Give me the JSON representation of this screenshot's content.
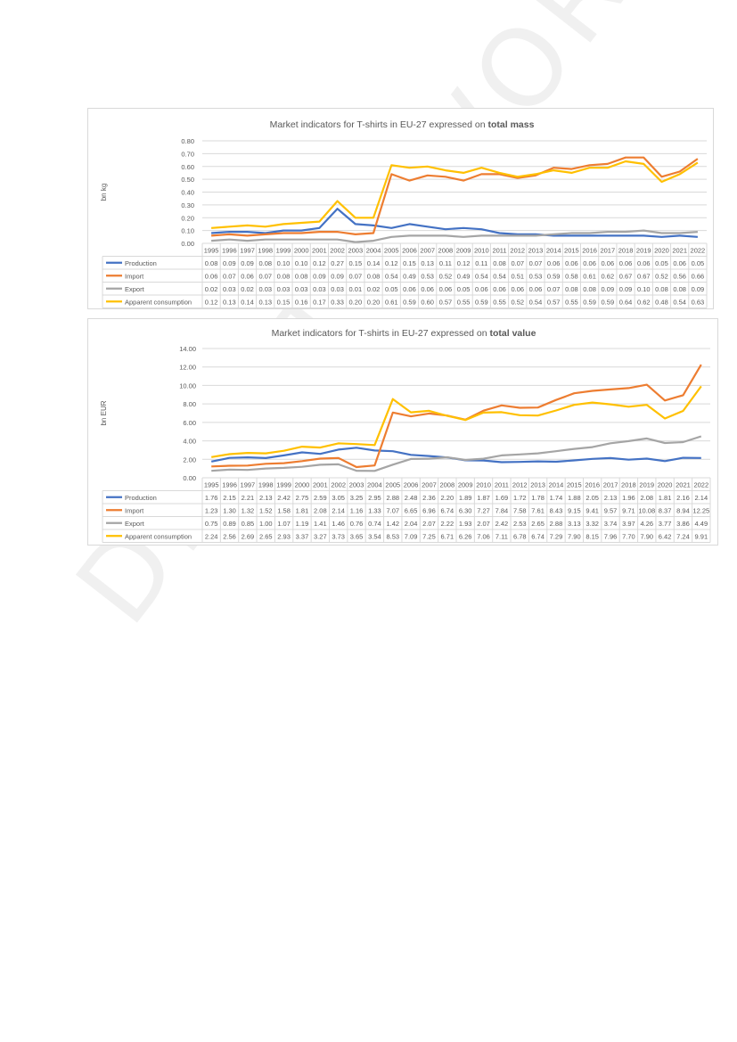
{
  "watermark": "DRAFT - WORK IN PROGRESS",
  "colors": {
    "production": "#4472c4",
    "import": "#ed7d31",
    "export": "#a5a5a5",
    "apparent_consumption": "#ffc000",
    "grid": "#d9d9d9",
    "text": "#595959"
  },
  "chart_data": [
    {
      "type": "line",
      "title_prefix": "Market indicators for T-shirts in EU-27 expressed on ",
      "title_bold": "total mass",
      "ylabel": "bn kg",
      "ylim": [
        0,
        0.8
      ],
      "yticks": [
        "0.00",
        "0.10",
        "0.20",
        "0.30",
        "0.40",
        "0.50",
        "0.60",
        "0.70",
        "0.80"
      ],
      "grid": true,
      "legend": "data-table",
      "categories": [
        "1995",
        "1996",
        "1997",
        "1998",
        "1999",
        "2000",
        "2001",
        "2002",
        "2003",
        "2004",
        "2005",
        "2006",
        "2007",
        "2008",
        "2009",
        "2010",
        "2011",
        "2012",
        "2013",
        "2014",
        "2015",
        "2016",
        "2017",
        "2018",
        "2019",
        "2020",
        "2021",
        "2022"
      ],
      "series": [
        {
          "name": "Production",
          "color": "#4472c4",
          "labels": [
            "0.08",
            "0.09",
            "0.09",
            "0.08",
            "0.10",
            "0.10",
            "0.12",
            "0.27",
            "0.15",
            "0.14",
            "0.12",
            "0.15",
            "0.13",
            "0.11",
            "0.12",
            "0.11",
            "0.08",
            "0.07",
            "0.07",
            "0.06",
            "0.06",
            "0.06",
            "0.06",
            "0.06",
            "0.06",
            "0.05",
            "0.06",
            "0.05"
          ],
          "values": [
            0.08,
            0.09,
            0.09,
            0.08,
            0.1,
            0.1,
            0.12,
            0.27,
            0.15,
            0.14,
            0.12,
            0.15,
            0.13,
            0.11,
            0.12,
            0.11,
            0.08,
            0.07,
            0.07,
            0.06,
            0.06,
            0.06,
            0.06,
            0.06,
            0.06,
            0.05,
            0.06,
            0.05
          ]
        },
        {
          "name": "Import",
          "color": "#ed7d31",
          "labels": [
            "0.06",
            "0.07",
            "0.06",
            "0.07",
            "0.08",
            "0.08",
            "0.09",
            "0.09",
            "0.07",
            "0.08",
            "0.54",
            "0.49",
            "0.53",
            "0.52",
            "0.49",
            "0.54",
            "0.54",
            "0.51",
            "0.53",
            "0.59",
            "0.58",
            "0.61",
            "0.62",
            "0.67",
            "0.67",
            "0.52",
            "0.56",
            "0.66"
          ],
          "values": [
            0.06,
            0.07,
            0.06,
            0.07,
            0.08,
            0.08,
            0.09,
            0.09,
            0.07,
            0.08,
            0.54,
            0.49,
            0.53,
            0.52,
            0.49,
            0.54,
            0.54,
            0.51,
            0.53,
            0.59,
            0.58,
            0.61,
            0.62,
            0.67,
            0.67,
            0.52,
            0.56,
            0.66
          ]
        },
        {
          "name": "Export",
          "color": "#a5a5a5",
          "labels": [
            "0.02",
            "0.03",
            "0.02",
            "0.03",
            "0.03",
            "0.03",
            "0.03",
            "0.03",
            "0.01",
            "0.02",
            "0.05",
            "0.06",
            "0.06",
            "0.06",
            "0.05",
            "0.06",
            "0.06",
            "0.06",
            "0.06",
            "0.07",
            "0.08",
            "0.08",
            "0.09",
            "0.09",
            "0.10",
            "0.08",
            "0.08",
            "0.09"
          ],
          "values": [
            0.02,
            0.03,
            0.02,
            0.03,
            0.03,
            0.03,
            0.03,
            0.03,
            0.01,
            0.02,
            0.05,
            0.06,
            0.06,
            0.06,
            0.05,
            0.06,
            0.06,
            0.06,
            0.06,
            0.07,
            0.08,
            0.08,
            0.09,
            0.09,
            0.1,
            0.08,
            0.08,
            0.09
          ]
        },
        {
          "name": "Apparent consumption",
          "color": "#ffc000",
          "labels": [
            "0.12",
            "0.13",
            "0.14",
            "0.13",
            "0.15",
            "0.16",
            "0.17",
            "0.33",
            "0.20",
            "0.20",
            "0.61",
            "0.59",
            "0.60",
            "0.57",
            "0.55",
            "0.59",
            "0.55",
            "0.52",
            "0.54",
            "0.57",
            "0.55",
            "0.59",
            "0.59",
            "0.64",
            "0.62",
            "0.48",
            "0.54",
            "0.63"
          ],
          "values": [
            0.12,
            0.13,
            0.14,
            0.13,
            0.15,
            0.16,
            0.17,
            0.33,
            0.2,
            0.2,
            0.61,
            0.59,
            0.6,
            0.57,
            0.55,
            0.59,
            0.55,
            0.52,
            0.54,
            0.57,
            0.55,
            0.59,
            0.59,
            0.64,
            0.62,
            0.48,
            0.54,
            0.63
          ]
        }
      ]
    },
    {
      "type": "line",
      "title_prefix": "Market indicators for T-shirts in EU-27 expressed on ",
      "title_bold": "total value",
      "ylabel": "bn EUR",
      "ylim": [
        0,
        14
      ],
      "yticks": [
        "0.00",
        "2.00",
        "4.00",
        "6.00",
        "8.00",
        "10.00",
        "12.00",
        "14.00"
      ],
      "grid": true,
      "legend": "data-table",
      "categories": [
        "1995",
        "1996",
        "1997",
        "1998",
        "1999",
        "2000",
        "2001",
        "2002",
        "2003",
        "2004",
        "2005",
        "2006",
        "2007",
        "2008",
        "2009",
        "2010",
        "2011",
        "2012",
        "2013",
        "2014",
        "2015",
        "2016",
        "2017",
        "2018",
        "2019",
        "2020",
        "2021",
        "2022"
      ],
      "series": [
        {
          "name": "Production",
          "color": "#4472c4",
          "labels": [
            "1.76",
            "2.15",
            "2.21",
            "2.13",
            "2.42",
            "2.75",
            "2.59",
            "3.05",
            "3.25",
            "2.95",
            "2.88",
            "2.48",
            "2.36",
            "2.20",
            "1.89",
            "1.87",
            "1.69",
            "1.72",
            "1.78",
            "1.74",
            "1.88",
            "2.05",
            "2.13",
            "1.96",
            "2.08",
            "1.81",
            "2.16",
            "2.14"
          ],
          "values": [
            1.76,
            2.15,
            2.21,
            2.13,
            2.42,
            2.75,
            2.59,
            3.05,
            3.25,
            2.95,
            2.88,
            2.48,
            2.36,
            2.2,
            1.89,
            1.87,
            1.69,
            1.72,
            1.78,
            1.74,
            1.88,
            2.05,
            2.13,
            1.96,
            2.08,
            1.81,
            2.16,
            2.14
          ]
        },
        {
          "name": "Import",
          "color": "#ed7d31",
          "labels": [
            "1.23",
            "1.30",
            "1.32",
            "1.52",
            "1.58",
            "1.81",
            "2.08",
            "2.14",
            "1.16",
            "1.33",
            "7.07",
            "6.65",
            "6.96",
            "6.74",
            "6.30",
            "7.27",
            "7.84",
            "7.58",
            "7.61",
            "8.43",
            "9.15",
            "9.41",
            "9.57",
            "9.71",
            "10.08",
            "8.37",
            "8.94",
            "12.25"
          ],
          "values": [
            1.23,
            1.3,
            1.32,
            1.52,
            1.58,
            1.81,
            2.08,
            2.14,
            1.16,
            1.33,
            7.07,
            6.65,
            6.96,
            6.74,
            6.3,
            7.27,
            7.84,
            7.58,
            7.61,
            8.43,
            9.15,
            9.41,
            9.57,
            9.71,
            10.08,
            8.37,
            8.94,
            12.25
          ]
        },
        {
          "name": "Export",
          "color": "#a5a5a5",
          "labels": [
            "0.75",
            "0.89",
            "0.85",
            "1.00",
            "1.07",
            "1.19",
            "1.41",
            "1.46",
            "0.76",
            "0.74",
            "1.42",
            "2.04",
            "2.07",
            "2.22",
            "1.93",
            "2.07",
            "2.42",
            "2.53",
            "2.65",
            "2.88",
            "3.13",
            "3.32",
            "3.74",
            "3.97",
            "4.26",
            "3.77",
            "3.86",
            "4.49"
          ],
          "values": [
            0.75,
            0.89,
            0.85,
            1.0,
            1.07,
            1.19,
            1.41,
            1.46,
            0.76,
            0.74,
            1.42,
            2.04,
            2.07,
            2.22,
            1.93,
            2.07,
            2.42,
            2.53,
            2.65,
            2.88,
            3.13,
            3.32,
            3.74,
            3.97,
            4.26,
            3.77,
            3.86,
            4.49
          ]
        },
        {
          "name": "Apparent consumption",
          "color": "#ffc000",
          "labels": [
            "2.24",
            "2.56",
            "2.69",
            "2.65",
            "2.93",
            "3.37",
            "3.27",
            "3.73",
            "3.65",
            "3.54",
            "8.53",
            "7.09",
            "7.25",
            "6.71",
            "6.26",
            "7.06",
            "7.11",
            "6.78",
            "6.74",
            "7.29",
            "7.90",
            "8.15",
            "7.96",
            "7.70",
            "7.90",
            "6.42",
            "7.24",
            "9.91"
          ],
          "values": [
            2.24,
            2.56,
            2.69,
            2.65,
            2.93,
            3.37,
            3.27,
            3.73,
            3.65,
            3.54,
            8.53,
            7.09,
            7.25,
            6.71,
            6.26,
            7.06,
            7.11,
            6.78,
            6.74,
            7.29,
            7.9,
            8.15,
            7.96,
            7.7,
            7.9,
            6.42,
            7.24,
            9.91
          ]
        }
      ]
    }
  ]
}
